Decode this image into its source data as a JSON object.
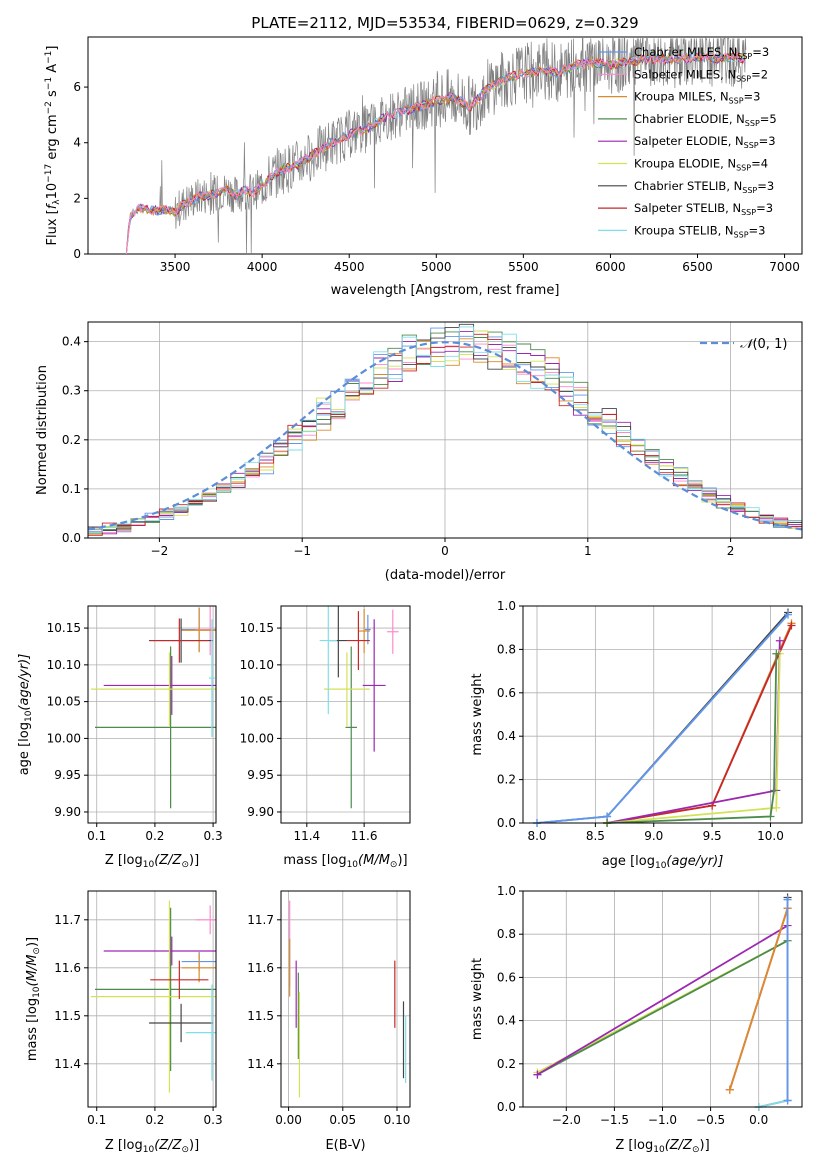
{
  "figure": {
    "title": "PLATE=2112, MJD=53534, FIBERID=0629, z=0.329"
  },
  "colors": {
    "chabrier_miles": "#6495ed",
    "salpeter_miles": "#ff88cc",
    "kroupa_miles": "#d98c2b",
    "chabrier_elodie": "#4c8b4c",
    "salpeter_elodie": "#9c27b0",
    "kroupa_elodie": "#d4e157",
    "chabrier_stelib": "#444444",
    "salpeter_stelib": "#c62828",
    "kroupa_stelib": "#80deea",
    "data": "#808080",
    "normal": "#5b8dd9",
    "grid": "#b0b0b0"
  },
  "chart_data": [
    {
      "id": "spectrum",
      "type": "line",
      "title": "PLATE=2112, MJD=53534, FIBERID=0629, z=0.329",
      "xlabel": "wavelength [Angstrom, rest frame]",
      "ylabel_main": "Flux [",
      "ylabel_sub": "f",
      "ylabel_rest": "10",
      "xlim": [
        3000,
        7100
      ],
      "ylim": [
        0,
        7.8
      ],
      "xticks": [
        3500,
        4000,
        4500,
        5000,
        5500,
        6000,
        6500,
        7000
      ],
      "yticks": [
        0,
        2,
        4,
        6
      ],
      "grid": false,
      "legend_position": "right",
      "legend": [
        {
          "label": "Chabrier MILES, N",
          "n": "=3",
          "color_key": "chabrier_miles"
        },
        {
          "label": "Salpeter MILES, N",
          "n": "=2",
          "color_key": "salpeter_miles"
        },
        {
          "label": "Kroupa MILES, N",
          "n": "=3",
          "color_key": "kroupa_miles"
        },
        {
          "label": "Chabrier ELODIE, N",
          "n": "=5",
          "color_key": "chabrier_elodie"
        },
        {
          "label": "Salpeter ELODIE, N",
          "n": "=3",
          "color_key": "salpeter_elodie"
        },
        {
          "label": "Kroupa ELODIE, N",
          "n": "=4",
          "color_key": "kroupa_elodie"
        },
        {
          "label": "Chabrier STELIB, N",
          "n": "=3",
          "color_key": "chabrier_stelib"
        },
        {
          "label": "Salpeter STELIB, N",
          "n": "=3",
          "color_key": "salpeter_stelib"
        },
        {
          "label": "Kroupa STELIB, N",
          "n": "=3",
          "color_key": "kroupa_stelib"
        }
      ],
      "model_x": [
        3220,
        3240,
        3260,
        3300,
        3350,
        3400,
        3450,
        3500,
        3550,
        3600,
        3650,
        3700,
        3750,
        3800,
        3850,
        3900,
        3950,
        4000,
        4100,
        4200,
        4300,
        4400,
        4500,
        4600,
        4700,
        4800,
        4900,
        5000,
        5100,
        5200,
        5300,
        5400,
        5500,
        5600,
        5700,
        5800,
        5900,
        6000,
        6100,
        6200,
        6300,
        6400,
        6500,
        6600,
        6700,
        6780
      ],
      "model_y": [
        0,
        1.3,
        1.5,
        1.65,
        1.6,
        1.55,
        1.6,
        1.5,
        1.8,
        1.95,
        2.1,
        2.1,
        2.2,
        2.3,
        2.1,
        2.3,
        2.2,
        2.5,
        3.0,
        3.2,
        3.6,
        4.0,
        4.3,
        4.5,
        4.9,
        5.1,
        5.3,
        5.5,
        5.6,
        5.3,
        6.0,
        6.3,
        6.5,
        6.6,
        6.5,
        6.8,
        6.9,
        6.8,
        6.9,
        7.0,
        7.0,
        7.0,
        7.1,
        7.0,
        7.1,
        7.0
      ]
    },
    {
      "id": "residuals",
      "type": "bar",
      "xlabel": "(data-model)/error",
      "ylabel": "Normed distribution",
      "xlim": [
        -2.5,
        2.5
      ],
      "ylim": [
        0,
        0.44
      ],
      "xticks": [
        -2,
        -1,
        0,
        1,
        2
      ],
      "yticks": [
        0.0,
        0.1,
        0.2,
        0.3,
        0.4
      ],
      "grid": true,
      "legend_position": "top-right",
      "legend_label": "(0, 1)"
    },
    {
      "id": "age_vs_z",
      "type": "scatter",
      "xlabel": "Z [log",
      "xlabel_sub": "10",
      "xlabel_rest": "(Z/Z",
      "ylabel": "age  [log",
      "ylabel_sub": "10",
      "ylabel_rest": "(age/yr)]",
      "xlim": [
        0.085,
        0.305
      ],
      "ylim": [
        9.885,
        10.18
      ],
      "xticks": [
        0.1,
        0.2,
        0.3
      ],
      "yticks": [
        9.9,
        9.95,
        10.0,
        10.05,
        10.1,
        10.15
      ],
      "grid": true,
      "points": [
        {
          "x": 0.276,
          "y": 10.148,
          "xerr": 0.03,
          "yerr": 0.03,
          "color_key": "chabrier_miles"
        },
        {
          "x": 0.295,
          "y": 10.148,
          "xerr": 0.025,
          "yerr": 0.035,
          "color_key": "salpeter_miles"
        },
        {
          "x": 0.276,
          "y": 10.147,
          "xerr": 0.03,
          "yerr": 0.03,
          "color_key": "kroupa_miles"
        },
        {
          "x": 0.227,
          "y": 10.015,
          "xerr": 0.13,
          "yerr": 0.11,
          "color_key": "chabrier_elodie"
        },
        {
          "x": 0.229,
          "y": 10.072,
          "xerr": 0.117,
          "yerr": 0.04,
          "color_key": "salpeter_elodie"
        },
        {
          "x": 0.225,
          "y": 10.067,
          "xerr": 0.135,
          "yerr": 0.05,
          "color_key": "kroupa_elodie"
        },
        {
          "x": 0.245,
          "y": 10.133,
          "xerr": 0.055,
          "yerr": 0.03,
          "color_key": "chabrier_stelib"
        },
        {
          "x": 0.242,
          "y": 10.133,
          "xerr": 0.05,
          "yerr": 0.03,
          "color_key": "salpeter_stelib"
        },
        {
          "x": 0.298,
          "y": 10.082,
          "xerr": 0.005,
          "yerr": 0.08,
          "color_key": "kroupa_stelib"
        }
      ]
    },
    {
      "id": "age_vs_mass",
      "type": "scatter",
      "xlabel": "mass [log",
      "xlabel_sub": "10",
      "xlabel_rest": "(M/M",
      "xlim": [
        11.31,
        11.76
      ],
      "ylim": [
        9.885,
        10.18
      ],
      "xticks": [
        11.4,
        11.6
      ],
      "yticks": [
        9.9,
        9.95,
        10.0,
        10.05,
        10.1,
        10.15
      ],
      "grid": true,
      "points": [
        {
          "x": 11.613,
          "y": 10.148,
          "xerr": 0.01,
          "yerr": 0.02,
          "color_key": "chabrier_miles"
        },
        {
          "x": 11.7,
          "y": 10.145,
          "xerr": 0.02,
          "yerr": 0.03,
          "color_key": "salpeter_miles"
        },
        {
          "x": 11.6,
          "y": 10.146,
          "xerr": 0.02,
          "yerr": 0.03,
          "color_key": "kroupa_miles"
        },
        {
          "x": 11.555,
          "y": 10.015,
          "xerr": 0.02,
          "yerr": 0.11,
          "color_key": "chabrier_elodie"
        },
        {
          "x": 11.635,
          "y": 10.072,
          "xerr": 0.04,
          "yerr": 0.09,
          "color_key": "salpeter_elodie"
        },
        {
          "x": 11.54,
          "y": 10.067,
          "xerr": 0.08,
          "yerr": 0.05,
          "color_key": "kroupa_elodie"
        },
        {
          "x": 11.51,
          "y": 10.133,
          "xerr": 0.03,
          "yerr": 0.05,
          "color_key": "chabrier_stelib"
        },
        {
          "x": 11.58,
          "y": 10.133,
          "xerr": 0.04,
          "yerr": 0.04,
          "color_key": "salpeter_stelib"
        },
        {
          "x": 11.475,
          "y": 10.133,
          "xerr": 0.03,
          "yerr": 0.1,
          "color_key": "kroupa_stelib"
        }
      ]
    },
    {
      "id": "weight_vs_age",
      "type": "line",
      "xlabel": "age  [log",
      "xlabel_sub": "10",
      "xlabel_rest": "(age/yr)]",
      "ylabel": "mass weight",
      "xlim": [
        7.88,
        10.27
      ],
      "ylim": [
        0,
        1.0
      ],
      "xticks": [
        8.0,
        8.5,
        9.0,
        9.5,
        10.0
      ],
      "yticks": [
        0.0,
        0.2,
        0.4,
        0.6,
        0.8,
        1.0
      ],
      "grid": true,
      "series": [
        {
          "color_key": "chabrier_stelib",
          "x": [
            8.0,
            8.6,
            10.15
          ],
          "y": [
            0.0,
            0.03,
            0.97
          ]
        },
        {
          "color_key": "kroupa_stelib",
          "x": [
            8.0,
            8.6,
            10.15
          ],
          "y": [
            0.0,
            0.03,
            0.96
          ]
        },
        {
          "color_key": "chabrier_miles",
          "x": [
            8.0,
            8.6,
            10.15
          ],
          "y": [
            0.0,
            0.03,
            0.96
          ]
        },
        {
          "color_key": "salpeter_miles",
          "x": [
            8.6,
            9.5,
            10.18
          ],
          "y": [
            0.0,
            0.08,
            0.92
          ]
        },
        {
          "color_key": "kroupa_miles",
          "x": [
            8.6,
            9.5,
            10.18
          ],
          "y": [
            0.0,
            0.08,
            0.92
          ]
        },
        {
          "color_key": "salpeter_stelib",
          "x": [
            8.6,
            9.5,
            10.18
          ],
          "y": [
            0.0,
            0.08,
            0.91
          ]
        },
        {
          "color_key": "salpeter_elodie",
          "x": [
            8.6,
            10.05,
            10.08
          ],
          "y": [
            0.0,
            0.15,
            0.84
          ]
        },
        {
          "color_key": "kroupa_elodie",
          "x": [
            8.6,
            10.05,
            10.08
          ],
          "y": [
            0.0,
            0.07,
            0.78
          ]
        },
        {
          "color_key": "chabrier_elodie",
          "x": [
            8.6,
            10.0,
            10.03,
            10.05
          ],
          "y": [
            0.0,
            0.03,
            0.15,
            0.78
          ]
        }
      ]
    },
    {
      "id": "mass_vs_z",
      "type": "scatter",
      "xlabel": "Z [log",
      "xlabel_sub": "10",
      "xlabel_rest": "(Z/Z",
      "ylabel": "mass [log",
      "ylabel_sub": "10",
      "ylabel_rest": "(M/M",
      "xlim": [
        0.085,
        0.305
      ],
      "ylim": [
        11.31,
        11.76
      ],
      "xticks": [
        0.1,
        0.2,
        0.3
      ],
      "yticks": [
        11.4,
        11.5,
        11.6,
        11.7
      ],
      "grid": true,
      "points": [
        {
          "x": 0.276,
          "y": 11.613,
          "xerr": 0.03,
          "yerr": 0.02,
          "color_key": "chabrier_miles"
        },
        {
          "x": 0.295,
          "y": 11.7,
          "xerr": 0.025,
          "yerr": 0.03,
          "color_key": "salpeter_miles"
        },
        {
          "x": 0.276,
          "y": 11.6,
          "xerr": 0.03,
          "yerr": 0.03,
          "color_key": "kroupa_miles"
        },
        {
          "x": 0.227,
          "y": 11.555,
          "xerr": 0.13,
          "yerr": 0.17,
          "color_key": "chabrier_elodie"
        },
        {
          "x": 0.229,
          "y": 11.635,
          "xerr": 0.117,
          "yerr": 0.03,
          "color_key": "salpeter_elodie"
        },
        {
          "x": 0.225,
          "y": 11.54,
          "xerr": 0.135,
          "yerr": 0.2,
          "color_key": "kroupa_elodie"
        },
        {
          "x": 0.245,
          "y": 11.485,
          "xerr": 0.055,
          "yerr": 0.04,
          "color_key": "chabrier_stelib"
        },
        {
          "x": 0.242,
          "y": 11.575,
          "xerr": 0.05,
          "yerr": 0.04,
          "color_key": "salpeter_stelib"
        },
        {
          "x": 0.298,
          "y": 11.465,
          "xerr": 0.045,
          "yerr": 0.1,
          "color_key": "kroupa_stelib"
        }
      ]
    },
    {
      "id": "mass_vs_ebv",
      "type": "scatter",
      "xlabel": "E(B-V)",
      "xlim": [
        -0.007,
        0.112
      ],
      "ylim": [
        11.31,
        11.76
      ],
      "xticks": [
        0.0,
        0.05,
        0.1
      ],
      "yticks": [
        11.4,
        11.5,
        11.6,
        11.7
      ],
      "grid": true,
      "points": [
        {
          "x": 0.001,
          "y": 11.65,
          "xerr": 0,
          "yerr": 0.09,
          "color_key": "salpeter_miles"
        },
        {
          "x": 0.001,
          "y": 11.6,
          "xerr": 0,
          "yerr": 0.06,
          "color_key": "kroupa_miles"
        },
        {
          "x": 0.007,
          "y": 11.545,
          "xerr": 0,
          "yerr": 0.07,
          "color_key": "salpeter_elodie"
        },
        {
          "x": 0.009,
          "y": 11.5,
          "xerr": 0,
          "yerr": 0.09,
          "color_key": "chabrier_elodie"
        },
        {
          "x": 0.01,
          "y": 11.44,
          "xerr": 0,
          "yerr": 0.11,
          "color_key": "kroupa_elodie"
        },
        {
          "x": 0.098,
          "y": 11.545,
          "xerr": 0,
          "yerr": 0.07,
          "color_key": "salpeter_stelib"
        },
        {
          "x": 0.106,
          "y": 11.45,
          "xerr": 0,
          "yerr": 0.08,
          "color_key": "chabrier_stelib"
        },
        {
          "x": 0.108,
          "y": 11.43,
          "xerr": 0,
          "yerr": 0.07,
          "color_key": "kroupa_stelib"
        }
      ]
    },
    {
      "id": "weight_vs_z",
      "type": "line",
      "xlabel": "Z [log",
      "xlabel_sub": "10",
      "xlabel_rest": "(Z/Z",
      "ylabel": "mass weight",
      "xlim": [
        -2.45,
        0.45
      ],
      "ylim": [
        0,
        1.0
      ],
      "xticks": [
        -2.0,
        -1.5,
        -1.0,
        -0.5,
        0.0
      ],
      "yticks": [
        0.0,
        0.2,
        0.4,
        0.6,
        0.8,
        1.0
      ],
      "grid": true,
      "series": [
        {
          "color_key": "kroupa_elodie",
          "x": [
            -2.3,
            0.3
          ],
          "y": [
            0.16,
            0.77
          ]
        },
        {
          "color_key": "chabrier_elodie",
          "x": [
            -2.3,
            0.3
          ],
          "y": [
            0.15,
            0.77
          ]
        },
        {
          "color_key": "salpeter_elodie",
          "x": [
            -2.3,
            0.3
          ],
          "y": [
            0.15,
            0.84
          ]
        },
        {
          "color_key": "salpeter_stelib",
          "x": [
            -0.3,
            0.3
          ],
          "y": [
            0.08,
            0.92
          ]
        },
        {
          "color_key": "salpeter_miles",
          "x": [
            -0.3,
            0.3
          ],
          "y": [
            0.08,
            0.92
          ]
        },
        {
          "color_key": "kroupa_miles",
          "x": [
            -0.3,
            0.3
          ],
          "y": [
            0.08,
            0.92
          ]
        },
        {
          "color_key": "chabrier_stelib",
          "x": [
            0.0,
            0.3,
            0.3
          ],
          "y": [
            0.0,
            0.03,
            0.97
          ]
        },
        {
          "color_key": "kroupa_stelib",
          "x": [
            0.0,
            0.3,
            0.3
          ],
          "y": [
            0.0,
            0.03,
            0.96
          ]
        },
        {
          "color_key": "chabrier_miles",
          "x": [
            0.3,
            0.3
          ],
          "y": [
            0.03,
            0.96
          ]
        }
      ]
    }
  ]
}
